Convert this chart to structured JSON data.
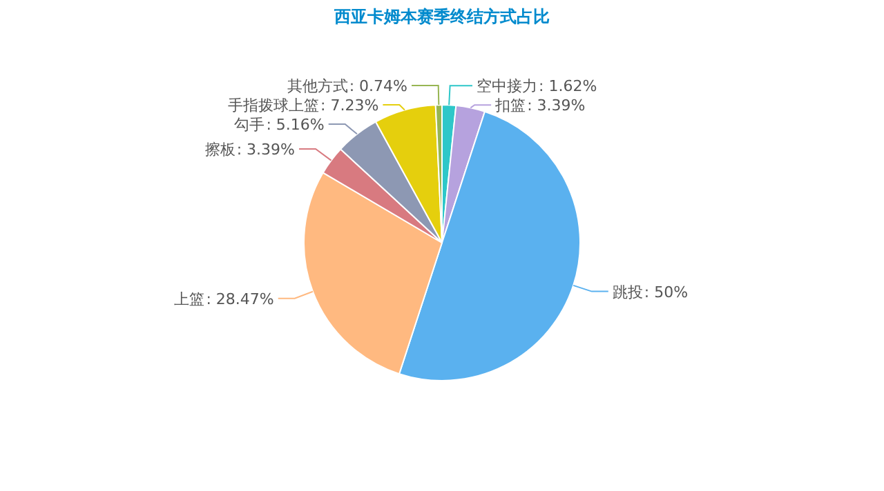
{
  "chart_data": {
    "type": "pie",
    "title": "西亚卡姆本赛季终结方式占比",
    "categories": [
      "空中接力",
      "扣篮",
      "跳投",
      "上篮",
      "擦板",
      "勾手",
      "手指拨球上篮",
      "其他方式"
    ],
    "values": [
      1.62,
      3.39,
      50,
      28.47,
      3.39,
      5.16,
      7.23,
      0.74
    ],
    "colors": [
      "#2ec7c9",
      "#b6a2de",
      "#5ab1ef",
      "#ffb980",
      "#d87a80",
      "#8d98b3",
      "#e5cf0d",
      "#97b552"
    ],
    "value_labels": [
      ": 1.62%",
      ": 3.39%",
      ": 50%",
      ": 28.47%",
      ": 3.39%",
      ": 5.16%",
      ": 7.23%",
      ": 0.74%"
    ]
  }
}
